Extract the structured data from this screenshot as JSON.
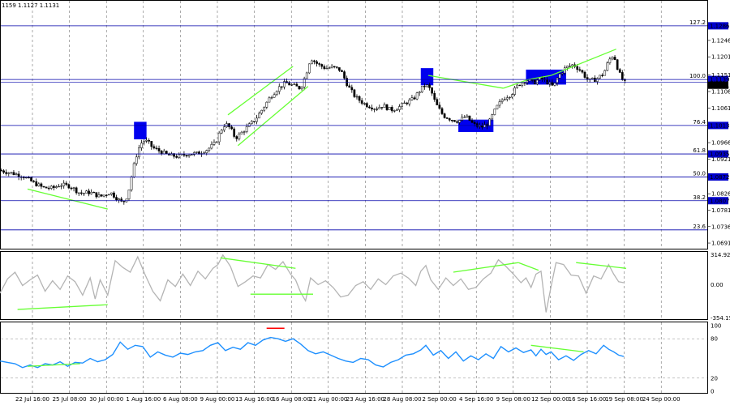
{
  "header": {
    "ohlc_text": "1159 1.1127 1.1131"
  },
  "colors": {
    "price_line": "#0000aa",
    "price_tag_bg": "#0000cc",
    "box": "#0000ee",
    "trend": "#66ff33",
    "cci": "#b4b4b4",
    "rsi": "#1e90ff",
    "grid": "#555555",
    "candle": "#000000",
    "marker": "#ff0000"
  },
  "chart_data": [
    {
      "type": "candlestick",
      "title": "",
      "ylim": [
        1.068,
        1.135
      ],
      "price_ticks": [
        "1.1246",
        "1.1201",
        "1.1151",
        "1.1106",
        "1.1061",
        "1.0966",
        "1.0921",
        "1.0826",
        "1.0781",
        "1.0736",
        "1.0691"
      ],
      "fib_levels": [
        {
          "label": "127.2",
          "value": "1.1286",
          "price": 1.1286
        },
        {
          "label": "100.0",
          "value": "1.1139",
          "price": 1.1139
        },
        {
          "label": "76.4",
          "value": "1.1013",
          "price": 1.1013
        },
        {
          "label": "61.8",
          "value": "1.0935",
          "price": 1.0935
        },
        {
          "label": "50.0",
          "value": "1.0872",
          "price": 1.0872
        },
        {
          "label": "38.2",
          "value": "1.0807",
          "price": 1.0807
        },
        {
          "label": "23.6",
          "value": "",
          "price": 1.0727
        }
      ],
      "current_price": "1.1131",
      "current_price_value": 1.1131,
      "x_labels": [
        "22 Jul 16:00",
        "25 Jul 08:00",
        "30 Jul 00:00",
        "1 Aug 16:00",
        "6 Aug 08:00",
        "9 Aug 00:00",
        "13 Aug 16:00",
        "16 Aug 08:00",
        "21 Aug 00:00",
        "23 Aug 16:00",
        "28 Aug 08:00",
        "2 Sep 00:00",
        "4 Sep 16:00",
        "9 Sep 08:00",
        "12 Sep 00:00",
        "16 Sep 16:00",
        "19 Sep 08:00",
        "24 Sep 00:00"
      ],
      "price_path": [
        [
          0,
          1.089
        ],
        [
          5,
          1.0882
        ],
        [
          9,
          1.0875
        ],
        [
          13,
          1.0858
        ],
        [
          17,
          1.0843
        ],
        [
          21,
          1.0841
        ],
        [
          24,
          1.0851
        ],
        [
          28,
          1.0847
        ],
        [
          32,
          1.0827
        ],
        [
          36,
          1.083
        ],
        [
          40,
          1.0818
        ],
        [
          44,
          1.083
        ],
        [
          47,
          1.0812
        ],
        [
          49,
          1.08
        ],
        [
          51,
          1.0822
        ],
        [
          53,
          1.089
        ],
        [
          55,
          1.0945
        ],
        [
          57,
          1.0972
        ],
        [
          59,
          1.0968
        ],
        [
          61,
          1.0952
        ],
        [
          64,
          1.0942
        ],
        [
          67,
          1.0932
        ],
        [
          71,
          1.0928
        ],
        [
          75,
          1.0935
        ],
        [
          79,
          1.0936
        ],
        [
          83,
          1.0948
        ],
        [
          86,
          1.0965
        ],
        [
          88,
          1.0998
        ],
        [
          90,
          1.1018
        ],
        [
          92,
          1.1005
        ],
        [
          94,
          1.0978
        ],
        [
          96,
          1.099
        ],
        [
          99,
          1.101
        ],
        [
          102,
          1.103
        ],
        [
          105,
          1.106
        ],
        [
          108,
          1.1092
        ],
        [
          111,
          1.1115
        ],
        [
          114,
          1.113
        ],
        [
          117,
          1.1122
        ],
        [
          120,
          1.1115
        ],
        [
          122,
          1.115
        ],
        [
          124,
          1.1198
        ],
        [
          127,
          1.118
        ],
        [
          130,
          1.117
        ],
        [
          133,
          1.1172
        ],
        [
          136,
          1.1165
        ],
        [
          139,
          1.112
        ],
        [
          142,
          1.109
        ],
        [
          146,
          1.107
        ],
        [
          150,
          1.106
        ],
        [
          153,
          1.1068
        ],
        [
          156,
          1.1055
        ],
        [
          159,
          1.1062
        ],
        [
          162,
          1.1075
        ],
        [
          165,
          1.1085
        ],
        [
          168,
          1.1112
        ],
        [
          170,
          1.1125
        ],
        [
          172,
          1.111
        ],
        [
          174,
          1.1072
        ],
        [
          177,
          1.104
        ],
        [
          180,
          1.103
        ],
        [
          183,
          1.1025
        ],
        [
          186,
          1.1038
        ],
        [
          189,
          1.1016
        ],
        [
          192,
          1.1008
        ],
        [
          195,
          1.1018
        ],
        [
          198,
          1.106
        ],
        [
          201,
          1.1088
        ],
        [
          204,
          1.1098
        ],
        [
          207,
          1.1125
        ],
        [
          210,
          1.1138
        ],
        [
          213,
          1.113
        ],
        [
          216,
          1.1142
        ],
        [
          219,
          1.113
        ],
        [
          221,
          1.1118
        ],
        [
          223,
          1.115
        ],
        [
          226,
          1.1172
        ],
        [
          229,
          1.118
        ],
        [
          232,
          1.1162
        ],
        [
          235,
          1.1135
        ],
        [
          238,
          1.114
        ],
        [
          241,
          1.1155
        ],
        [
          243,
          1.119
        ],
        [
          245,
          1.1208
        ],
        [
          247,
          1.116
        ],
        [
          249,
          1.1131
        ]
      ],
      "boxes": [
        {
          "i0": 53.5,
          "i1": 58.5,
          "p_top": 1.1023,
          "p_bot": 1.0975
        },
        {
          "i0": 168,
          "i1": 173,
          "p_top": 1.117,
          "p_bot": 1.1123
        },
        {
          "i0": 183,
          "i1": 197,
          "p_top": 1.1029,
          "p_bot": 1.0995
        },
        {
          "i0": 210,
          "i1": 226,
          "p_top": 1.1166,
          "p_bot": 1.1125
        }
      ],
      "trendlines": [
        [
          [
            11,
            1.0839
          ],
          [
            43,
            1.0784
          ]
        ],
        [
          [
            91,
            1.1042
          ],
          [
            117,
            1.1175
          ]
        ],
        [
          [
            95,
            1.0958
          ],
          [
            123,
            1.112
          ]
        ],
        [
          [
            171,
            1.115
          ],
          [
            201,
            1.1115
          ]
        ],
        [
          [
            201,
            1.1115
          ],
          [
            211,
            1.1139
          ]
        ],
        [
          [
            211,
            1.1139
          ],
          [
            220,
            1.115
          ]
        ],
        [
          [
            220,
            1.115
          ],
          [
            246,
            1.1222
          ]
        ]
      ]
    },
    {
      "type": "line",
      "title": "",
      "ylim": [
        -354.1539,
        314.9232
      ],
      "tick_labels": {
        "top": "314.9232",
        "mid": "0.00",
        "bot": "-354.1539"
      },
      "values": [
        [
          0,
          -100
        ],
        [
          3,
          50
        ],
        [
          6,
          120
        ],
        [
          9,
          -20
        ],
        [
          12,
          40
        ],
        [
          15,
          90
        ],
        [
          18,
          -80
        ],
        [
          21,
          30
        ],
        [
          24,
          -60
        ],
        [
          27,
          80
        ],
        [
          30,
          20
        ],
        [
          33,
          -120
        ],
        [
          36,
          60
        ],
        [
          38,
          -160
        ],
        [
          40,
          40
        ],
        [
          43,
          -120
        ],
        [
          46,
          240
        ],
        [
          49,
          170
        ],
        [
          52,
          120
        ],
        [
          55,
          280
        ],
        [
          58,
          90
        ],
        [
          61,
          -80
        ],
        [
          64,
          -180
        ],
        [
          67,
          40
        ],
        [
          70,
          -30
        ],
        [
          73,
          100
        ],
        [
          76,
          -20
        ],
        [
          79,
          130
        ],
        [
          82,
          50
        ],
        [
          85,
          160
        ],
        [
          87,
          200
        ],
        [
          89,
          300
        ],
        [
          92,
          180
        ],
        [
          95,
          -30
        ],
        [
          98,
          20
        ],
        [
          101,
          80
        ],
        [
          104,
          60
        ],
        [
          107,
          200
        ],
        [
          110,
          150
        ],
        [
          113,
          230
        ],
        [
          116,
          100
        ],
        [
          118,
          40
        ],
        [
          120,
          -90
        ],
        [
          122,
          -180
        ],
        [
          124,
          60
        ],
        [
          127,
          -10
        ],
        [
          130,
          30
        ],
        [
          133,
          -40
        ],
        [
          136,
          -140
        ],
        [
          139,
          -120
        ],
        [
          142,
          -20
        ],
        [
          145,
          20
        ],
        [
          148,
          -60
        ],
        [
          151,
          50
        ],
        [
          154,
          -10
        ],
        [
          157,
          80
        ],
        [
          160,
          110
        ],
        [
          163,
          60
        ],
        [
          166,
          -20
        ],
        [
          168,
          130
        ],
        [
          170,
          190
        ],
        [
          172,
          40
        ],
        [
          175,
          -60
        ],
        [
          178,
          60
        ],
        [
          181,
          -20
        ],
        [
          184,
          50
        ],
        [
          187,
          -60
        ],
        [
          190,
          -40
        ],
        [
          193,
          50
        ],
        [
          196,
          110
        ],
        [
          199,
          250
        ],
        [
          202,
          180
        ],
        [
          205,
          100
        ],
        [
          208,
          10
        ],
        [
          210,
          60
        ],
        [
          212,
          -40
        ],
        [
          214,
          100
        ],
        [
          216,
          130
        ],
        [
          218,
          -300
        ],
        [
          220,
          -30
        ],
        [
          222,
          220
        ],
        [
          225,
          200
        ],
        [
          228,
          90
        ],
        [
          231,
          80
        ],
        [
          234,
          -100
        ],
        [
          237,
          80
        ],
        [
          240,
          50
        ],
        [
          243,
          200
        ],
        [
          245,
          100
        ],
        [
          247,
          20
        ],
        [
          249,
          10
        ]
      ],
      "trendlines": [
        [
          [
            7,
            -270
          ],
          [
            43,
            -220
          ]
        ],
        [
          [
            88,
            270
          ],
          [
            118,
            160
          ]
        ],
        [
          [
            100,
            -110
          ],
          [
            125,
            -110
          ]
        ],
        [
          [
            181,
            120
          ],
          [
            207,
            220
          ]
        ],
        [
          [
            207,
            220
          ],
          [
            215,
            140
          ]
        ],
        [
          [
            230,
            220
          ],
          [
            250,
            160
          ]
        ]
      ]
    },
    {
      "type": "line",
      "title": "",
      "ylim": [
        20,
        100
      ],
      "tick_labels": [
        "100",
        "80",
        "20",
        "0"
      ],
      "values": [
        [
          0,
          46
        ],
        [
          3,
          44
        ],
        [
          6,
          42
        ],
        [
          9,
          36
        ],
        [
          12,
          40
        ],
        [
          15,
          36
        ],
        [
          18,
          42
        ],
        [
          21,
          40
        ],
        [
          24,
          45
        ],
        [
          27,
          38
        ],
        [
          30,
          44
        ],
        [
          33,
          43
        ],
        [
          36,
          50
        ],
        [
          39,
          45
        ],
        [
          42,
          48
        ],
        [
          45,
          56
        ],
        [
          48,
          75
        ],
        [
          51,
          64
        ],
        [
          54,
          70
        ],
        [
          57,
          68
        ],
        [
          60,
          52
        ],
        [
          63,
          60
        ],
        [
          66,
          55
        ],
        [
          69,
          52
        ],
        [
          72,
          58
        ],
        [
          75,
          56
        ],
        [
          78,
          60
        ],
        [
          81,
          62
        ],
        [
          84,
          70
        ],
        [
          87,
          74
        ],
        [
          90,
          62
        ],
        [
          93,
          67
        ],
        [
          96,
          64
        ],
        [
          99,
          74
        ],
        [
          102,
          70
        ],
        [
          105,
          78
        ],
        [
          108,
          82
        ],
        [
          111,
          80
        ],
        [
          114,
          76
        ],
        [
          117,
          80
        ],
        [
          120,
          72
        ],
        [
          123,
          62
        ],
        [
          126,
          57
        ],
        [
          129,
          60
        ],
        [
          132,
          55
        ],
        [
          135,
          50
        ],
        [
          138,
          46
        ],
        [
          141,
          44
        ],
        [
          144,
          50
        ],
        [
          147,
          48
        ],
        [
          150,
          40
        ],
        [
          153,
          37
        ],
        [
          156,
          44
        ],
        [
          159,
          48
        ],
        [
          162,
          55
        ],
        [
          165,
          57
        ],
        [
          168,
          63
        ],
        [
          170,
          70
        ],
        [
          173,
          55
        ],
        [
          176,
          62
        ],
        [
          179,
          50
        ],
        [
          182,
          60
        ],
        [
          185,
          46
        ],
        [
          188,
          54
        ],
        [
          191,
          48
        ],
        [
          194,
          57
        ],
        [
          197,
          50
        ],
        [
          200,
          68
        ],
        [
          203,
          60
        ],
        [
          206,
          66
        ],
        [
          209,
          59
        ],
        [
          212,
          63
        ],
        [
          214,
          54
        ],
        [
          216,
          64
        ],
        [
          218,
          56
        ],
        [
          220,
          60
        ],
        [
          223,
          48
        ],
        [
          226,
          54
        ],
        [
          229,
          47
        ],
        [
          232,
          56
        ],
        [
          235,
          62
        ],
        [
          238,
          57
        ],
        [
          241,
          70
        ],
        [
          243,
          64
        ],
        [
          245,
          60
        ],
        [
          247,
          55
        ],
        [
          249,
          53
        ]
      ],
      "marker": {
        "i": 110,
        "value": 96
      },
      "trendlines": [
        [
          [
            11,
            38
          ],
          [
            32,
            42
          ]
        ],
        [
          [
            212,
            70
          ],
          [
            233,
            60
          ]
        ]
      ]
    }
  ]
}
